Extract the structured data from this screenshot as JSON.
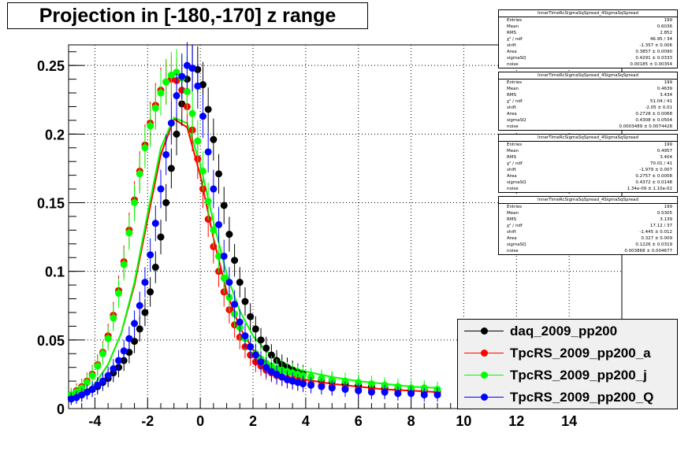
{
  "title": "Projection in [-180,-170] z range",
  "chart_data": {
    "type": "scatter",
    "title": "Projection in [-180,-170] z range",
    "xlabel": "",
    "ylabel": "",
    "xlim": [
      -5,
      16
    ],
    "ylim": [
      0,
      0.265
    ],
    "grid": true,
    "legend_position": "bottom-right",
    "x_ticks": [
      -4,
      -2,
      0,
      2,
      4,
      6,
      8,
      10,
      12,
      14
    ],
    "x_tick_labels": [
      "-4",
      "-2",
      "0",
      "2",
      "4",
      "6",
      "8",
      "10",
      "12",
      "14"
    ],
    "y_ticks": [
      0,
      0.05,
      0.1,
      0.15,
      0.2,
      0.25
    ],
    "y_tick_labels": [
      "0",
      "0.05",
      "0.1",
      "0.15",
      "0.2",
      "0.25"
    ],
    "series": [
      {
        "name": "daq_2009_pp200",
        "color": "#000000",
        "x": [
          -4.9,
          -4.7,
          -4.5,
          -4.3,
          -4.1,
          -3.9,
          -3.7,
          -3.5,
          -3.3,
          -3.1,
          -2.9,
          -2.7,
          -2.5,
          -2.3,
          -2.1,
          -1.9,
          -1.7,
          -1.5,
          -1.3,
          -1.1,
          -0.9,
          -0.7,
          -0.5,
          -0.3,
          -0.1,
          0.1,
          0.3,
          0.5,
          0.7,
          0.9,
          1.1,
          1.3,
          1.5,
          1.7,
          1.9,
          2.1,
          2.3,
          2.5,
          2.7,
          2.9,
          3.1,
          3.3,
          3.5,
          3.7,
          3.9,
          4.2,
          4.6,
          5.0,
          5.5,
          6.0,
          6.5,
          7.0,
          7.5,
          8.0,
          8.5,
          9.0
        ],
        "y": [
          0.008,
          0.009,
          0.01,
          0.012,
          0.014,
          0.016,
          0.019,
          0.022,
          0.026,
          0.03,
          0.035,
          0.041,
          0.049,
          0.058,
          0.07,
          0.085,
          0.103,
          0.125,
          0.15,
          0.175,
          0.2,
          0.222,
          0.24,
          0.248,
          0.247,
          0.236,
          0.218,
          0.196,
          0.171,
          0.148,
          0.127,
          0.108,
          0.092,
          0.078,
          0.067,
          0.058,
          0.05,
          0.044,
          0.039,
          0.035,
          0.032,
          0.03,
          0.028,
          0.026,
          0.025,
          0.023,
          0.021,
          0.02,
          0.018,
          0.017,
          0.016,
          0.015,
          0.014,
          0.013,
          0.013,
          0.012
        ]
      },
      {
        "name": "TpcRS_2009_pp200_a",
        "color": "#ff0000",
        "x": [
          -4.9,
          -4.7,
          -4.5,
          -4.3,
          -4.1,
          -3.9,
          -3.7,
          -3.5,
          -3.3,
          -3.1,
          -2.9,
          -2.7,
          -2.5,
          -2.3,
          -2.1,
          -1.9,
          -1.7,
          -1.5,
          -1.3,
          -1.1,
          -0.9,
          -0.7,
          -0.5,
          -0.3,
          -0.1,
          0.1,
          0.3,
          0.5,
          0.7,
          0.9,
          1.1,
          1.3,
          1.5,
          1.7,
          1.9,
          2.1,
          2.3,
          2.5,
          2.7,
          2.9,
          3.1,
          3.3,
          3.5,
          3.7,
          3.9,
          4.2,
          4.6,
          5.0,
          5.5,
          6.0,
          6.5,
          7.0,
          7.5,
          8.0,
          8.5,
          9.0
        ],
        "y": [
          0.01,
          0.013,
          0.016,
          0.02,
          0.025,
          0.032,
          0.041,
          0.053,
          0.068,
          0.086,
          0.107,
          0.13,
          0.152,
          0.173,
          0.192,
          0.208,
          0.221,
          0.232,
          0.238,
          0.24,
          0.239,
          0.232,
          0.22,
          0.203,
          0.182,
          0.16,
          0.138,
          0.118,
          0.1,
          0.085,
          0.072,
          0.061,
          0.052,
          0.045,
          0.039,
          0.034,
          0.031,
          0.028,
          0.026,
          0.024,
          0.023,
          0.022,
          0.021,
          0.02,
          0.019,
          0.018,
          0.017,
          0.016,
          0.015,
          0.014,
          0.014,
          0.013,
          0.013,
          0.012,
          0.012,
          0.011
        ]
      },
      {
        "name": "TpcRS_2009_pp200_j",
        "color": "#00ff00",
        "x": [
          -4.9,
          -4.7,
          -4.5,
          -4.3,
          -4.1,
          -3.9,
          -3.7,
          -3.5,
          -3.3,
          -3.1,
          -2.9,
          -2.7,
          -2.5,
          -2.3,
          -2.1,
          -1.9,
          -1.7,
          -1.5,
          -1.3,
          -1.1,
          -0.9,
          -0.7,
          -0.5,
          -0.3,
          -0.1,
          0.1,
          0.3,
          0.5,
          0.7,
          0.9,
          1.1,
          1.3,
          1.5,
          1.7,
          1.9,
          2.1,
          2.3,
          2.5,
          2.7,
          2.9,
          3.1,
          3.3,
          3.5,
          3.7,
          3.9,
          4.2,
          4.6,
          5.0,
          5.5,
          6.0,
          6.5,
          7.0,
          7.5,
          8.0,
          8.5,
          9.0
        ],
        "y": [
          0.01,
          0.012,
          0.015,
          0.019,
          0.024,
          0.031,
          0.04,
          0.051,
          0.066,
          0.084,
          0.105,
          0.128,
          0.15,
          0.171,
          0.19,
          0.206,
          0.219,
          0.23,
          0.238,
          0.243,
          0.245,
          0.241,
          0.231,
          0.215,
          0.195,
          0.173,
          0.151,
          0.13,
          0.111,
          0.095,
          0.081,
          0.069,
          0.059,
          0.051,
          0.045,
          0.04,
          0.036,
          0.033,
          0.031,
          0.029,
          0.028,
          0.027,
          0.026,
          0.025,
          0.024,
          0.023,
          0.022,
          0.021,
          0.02,
          0.019,
          0.018,
          0.017,
          0.016,
          0.015,
          0.015,
          0.014
        ]
      },
      {
        "name": "TpcRS_2009_pp200_Q",
        "color": "#0000ff",
        "x": [
          -4.9,
          -4.7,
          -4.5,
          -4.3,
          -4.1,
          -3.9,
          -3.7,
          -3.5,
          -3.3,
          -3.1,
          -2.9,
          -2.7,
          -2.5,
          -2.3,
          -2.1,
          -1.9,
          -1.7,
          -1.5,
          -1.3,
          -1.1,
          -0.9,
          -0.7,
          -0.5,
          -0.3,
          -0.1,
          0.1,
          0.3,
          0.5,
          0.7,
          0.9,
          1.1,
          1.3,
          1.5,
          1.7,
          1.9,
          2.1,
          2.3,
          2.5,
          2.7,
          2.9,
          3.1,
          3.3,
          3.5,
          3.7,
          3.9,
          4.2,
          4.6,
          5.0,
          5.5,
          6.0,
          6.5,
          7.0,
          7.5,
          8.0,
          8.5,
          9.0
        ],
        "y": [
          0.007,
          0.008,
          0.01,
          0.012,
          0.014,
          0.017,
          0.02,
          0.024,
          0.029,
          0.035,
          0.042,
          0.051,
          0.062,
          0.075,
          0.092,
          0.112,
          0.135,
          0.16,
          0.185,
          0.208,
          0.228,
          0.242,
          0.25,
          0.248,
          0.235,
          0.213,
          0.187,
          0.16,
          0.134,
          0.111,
          0.092,
          0.076,
          0.063,
          0.053,
          0.045,
          0.039,
          0.034,
          0.03,
          0.027,
          0.025,
          0.023,
          0.021,
          0.02,
          0.019,
          0.018,
          0.017,
          0.016,
          0.015,
          0.014,
          0.013,
          0.012,
          0.012,
          0.011,
          0.011,
          0.01,
          0.01
        ]
      }
    ],
    "fits": [
      {
        "color": "#ff0000",
        "x": [
          -4.9,
          -4.5,
          -4.0,
          -3.5,
          -3.0,
          -2.5,
          -2.0,
          -1.5,
          -1.0,
          -0.5,
          0.0,
          0.5,
          1.0,
          1.5,
          2.0,
          2.5,
          3.0,
          3.5,
          4.0,
          5.0,
          6.0,
          7.0,
          8.0,
          9.0
        ],
        "y": [
          0.006,
          0.01,
          0.018,
          0.032,
          0.055,
          0.09,
          0.138,
          0.185,
          0.211,
          0.205,
          0.17,
          0.124,
          0.085,
          0.059,
          0.043,
          0.034,
          0.028,
          0.024,
          0.021,
          0.018,
          0.016,
          0.014,
          0.013,
          0.012
        ]
      },
      {
        "color": "#00ff00",
        "x": [
          -4.9,
          -4.5,
          -4.0,
          -3.5,
          -3.0,
          -2.5,
          -2.0,
          -1.5,
          -1.0,
          -0.5,
          0.0,
          0.5,
          1.0,
          1.5,
          2.0,
          2.5,
          3.0,
          3.5,
          4.0,
          5.0,
          6.0,
          7.0,
          8.0,
          9.0
        ],
        "y": [
          0.006,
          0.01,
          0.018,
          0.032,
          0.055,
          0.092,
          0.142,
          0.19,
          0.212,
          0.208,
          0.178,
          0.136,
          0.098,
          0.071,
          0.053,
          0.042,
          0.035,
          0.03,
          0.027,
          0.023,
          0.02,
          0.018,
          0.016,
          0.015
        ]
      }
    ]
  },
  "stats": [
    {
      "title": "InnerTimeRcSigmaSqSpread_4SigmaSqSpread",
      "rows": [
        {
          "label": "Entries",
          "value": "199"
        },
        {
          "label": "Mean",
          "value": "0.6036"
        },
        {
          "label": "RMS",
          "value": "2.852"
        },
        {
          "label": "χ² / ndf",
          "value": "46.95 / 34"
        },
        {
          "label": "shift",
          "value": "-1.357 ± 0.006"
        },
        {
          "label": "Area",
          "value": "0.3857 ± 0.0090"
        },
        {
          "label": "sigmaSQ",
          "value": "0.4291 ± 0.0333"
        },
        {
          "label": "noise",
          "value": "0.00185 ± 0.00354"
        }
      ]
    },
    {
      "title": "InnerTimeRcSigmaSqSpread_4SigmaSqSpread",
      "rows": [
        {
          "label": "Entries",
          "value": "199"
        },
        {
          "label": "Mean",
          "value": "0.4639"
        },
        {
          "label": "RMS",
          "value": "3.434"
        },
        {
          "label": "χ² / ndf",
          "value": "51.04 / 41"
        },
        {
          "label": "shift",
          "value": "-2.05 ± 0.01"
        },
        {
          "label": "Area",
          "value": "0.2728 ± 0.0068"
        },
        {
          "label": "sigmaSQ",
          "value": "0.4308 ± 0.0504"
        },
        {
          "label": "noise",
          "value": "0.0003489 ± 0.0074428"
        }
      ]
    },
    {
      "title": "InnerTimeRcSigmaSqSpread_4SigmaSqSpread",
      "rows": [
        {
          "label": "Entries",
          "value": "199"
        },
        {
          "label": "Mean",
          "value": "0.4957"
        },
        {
          "label": "RMS",
          "value": "3.404"
        },
        {
          "label": "χ² / ndf",
          "value": "70.01 / 41"
        },
        {
          "label": "shift",
          "value": "-1.979 ± 0.007"
        },
        {
          "label": "Area",
          "value": "0.2757 ± 0.0008"
        },
        {
          "label": "sigmaSQ",
          "value": "0.4372 ± 0.0148"
        },
        {
          "label": "noise",
          "value": "1.34e-09 ± 1.10e-02"
        }
      ]
    },
    {
      "title": "InnerTimeRcSigmaSqSpread_4SigmaSqSpread",
      "rows": [
        {
          "label": "Entries",
          "value": "199"
        },
        {
          "label": "Mean",
          "value": "0.5305"
        },
        {
          "label": "RMS",
          "value": "3.139"
        },
        {
          "label": "χ² / ndf",
          "value": "17.12 / 37"
        },
        {
          "label": "shift",
          "value": "-1.445 ± 0.012"
        },
        {
          "label": "Area",
          "value": "0.327 ± 0.009"
        },
        {
          "label": "sigmaSQ",
          "value": "0.1226 ± 0.0319"
        },
        {
          "label": "noise",
          "value": "0.003868 ± 0.004677"
        }
      ]
    }
  ],
  "legend": [
    {
      "label": "daq_2009_pp200",
      "color": "#000000"
    },
    {
      "label": "TpcRS_2009_pp200_a",
      "color": "#ff0000"
    },
    {
      "label": "TpcRS_2009_pp200_j",
      "color": "#00ff00"
    },
    {
      "label": "TpcRS_2009_pp200_Q",
      "color": "#0000ff"
    }
  ]
}
